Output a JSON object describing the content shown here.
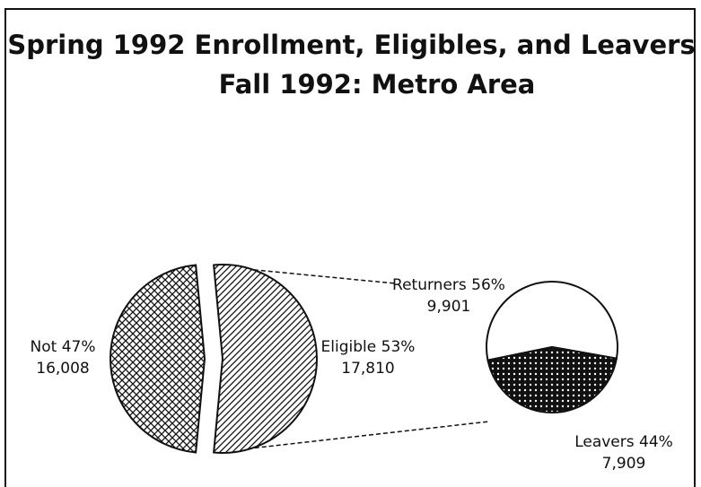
{
  "chart_data": [
    {
      "type": "pie",
      "title": "Spring 1992 Enrollment, Eligibles, and Leavers for Fall 1992: Metro Area",
      "categories": [
        "Not",
        "Eligible"
      ],
      "values": [
        47,
        53
      ],
      "value_labels": [
        "47%",
        "53%"
      ],
      "counts": [
        16008,
        17810
      ],
      "count_labels": [
        "16,008",
        "17,810"
      ],
      "patterns": [
        "crosshatch",
        "diagonal"
      ]
    },
    {
      "type": "pie",
      "categories": [
        "Returners",
        "Leavers"
      ],
      "values": [
        56,
        44
      ],
      "value_labels": [
        "56%",
        "44%"
      ],
      "counts": [
        9901,
        7909
      ],
      "count_labels": [
        "9,901",
        "7,909"
      ],
      "patterns": [
        "none",
        "dots"
      ]
    }
  ]
}
